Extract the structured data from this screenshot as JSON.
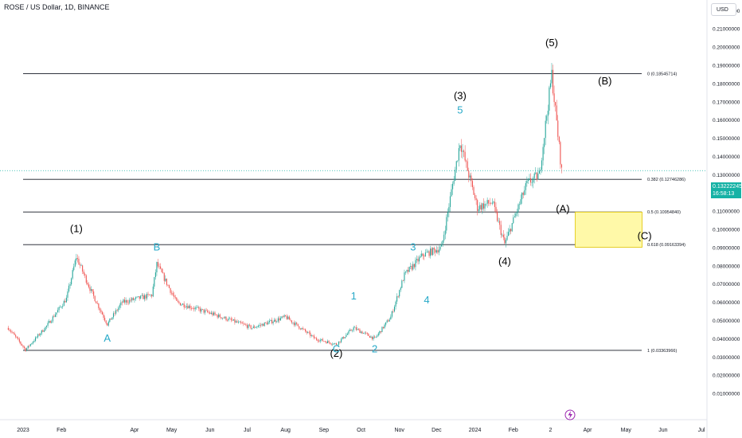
{
  "header": {
    "symbol_title": "ROSE / US Dollar, 1D, BINANCE",
    "currency": "USD"
  },
  "price_badge": {
    "price": "0.13222245",
    "countdown": "16:58:13"
  },
  "colors": {
    "up": "#26a69a",
    "down": "#ef5350",
    "fib_line": "#131722",
    "zone_fill": "#fff9a8",
    "zone_border": "#e0c400",
    "wave_minor": "#26a9c8",
    "wave_major": "#000000",
    "price_badge": "#16b2a5",
    "event_icon": "#9c27b0"
  },
  "chart_data": {
    "type": "candlestick",
    "x_axis_labels": [
      "2023",
      "Feb",
      "Apr",
      "May",
      "Jun",
      "Jul",
      "Aug",
      "Sep",
      "Oct",
      "Nov",
      "Dec",
      "2024",
      "Feb",
      "2",
      "Apr",
      "May",
      "Jun",
      "Jul"
    ],
    "y_axis_labels": [
      "0.01000000",
      "0.02000000",
      "0.03000000",
      "0.04000000",
      "0.05000000",
      "0.06000000",
      "0.07000000",
      "0.08000000",
      "0.09000000",
      "0.10000000",
      "0.11000000",
      "0.12000000",
      "0.13000000",
      "0.14000000",
      "0.15000000",
      "0.16000000",
      "0.17000000",
      "0.18000000",
      "0.19000000",
      "0.20000000",
      "0.21000000",
      "0.22000000"
    ],
    "ylim": [
      0.0,
      0.228
    ],
    "grid": false,
    "approx_path": [
      {
        "x": "2022-12-20",
        "y": 0.046
      },
      {
        "x": "2023-01-03",
        "y": 0.034
      },
      {
        "x": "2023-01-20",
        "y": 0.047
      },
      {
        "x": "2023-02-05",
        "y": 0.062
      },
      {
        "x": "2023-02-13",
        "y": 0.085
      },
      {
        "x": "2023-02-25",
        "y": 0.066
      },
      {
        "x": "2023-03-10",
        "y": 0.048
      },
      {
        "x": "2023-03-22",
        "y": 0.06
      },
      {
        "x": "2023-04-15",
        "y": 0.064
      },
      {
        "x": "2023-04-19",
        "y": 0.081
      },
      {
        "x": "2023-05-05",
        "y": 0.06
      },
      {
        "x": "2023-06-10",
        "y": 0.052
      },
      {
        "x": "2023-07-05",
        "y": 0.046
      },
      {
        "x": "2023-08-01",
        "y": 0.052
      },
      {
        "x": "2023-08-25",
        "y": 0.04
      },
      {
        "x": "2023-09-11",
        "y": 0.037
      },
      {
        "x": "2023-09-25",
        "y": 0.046
      },
      {
        "x": "2023-10-12",
        "y": 0.04
      },
      {
        "x": "2023-10-25",
        "y": 0.052
      },
      {
        "x": "2023-11-05",
        "y": 0.075
      },
      {
        "x": "2023-11-20",
        "y": 0.086
      },
      {
        "x": "2023-12-05",
        "y": 0.09
      },
      {
        "x": "2023-12-20",
        "y": 0.148
      },
      {
        "x": "2024-01-03",
        "y": 0.112
      },
      {
        "x": "2024-01-15",
        "y": 0.115
      },
      {
        "x": "2024-01-25",
        "y": 0.092
      },
      {
        "x": "2024-02-12",
        "y": 0.125
      },
      {
        "x": "2024-02-22",
        "y": 0.13
      },
      {
        "x": "2024-03-03",
        "y": 0.185
      },
      {
        "x": "2024-03-11",
        "y": 0.132
      }
    ],
    "fib_levels": [
      {
        "ratio": 0.0,
        "value": 0.18545714,
        "label": "0 (0.18545714)"
      },
      {
        "ratio": 0.382,
        "value": 0.12746286,
        "label": "0.382 (0.12746286)"
      },
      {
        "ratio": 0.5,
        "value": 0.1095484,
        "label": "0.5 (0.10954840)"
      },
      {
        "ratio": 0.618,
        "value": 0.09163394,
        "label": "0.618 (0.09163394)"
      },
      {
        "ratio": 1.0,
        "value": 0.03363966,
        "label": "1 (0.03363966)"
      }
    ],
    "target_zone": {
      "x_start": "2024-03-22",
      "x_end": "2024-05-15",
      "y_low": 0.0902,
      "y_high": 0.1095
    },
    "wave_labels": [
      {
        "text": "(1)",
        "style": "major",
        "x": "2023-02-13",
        "y": 0.0985
      },
      {
        "text": "(2)",
        "style": "major",
        "x": "2023-09-11",
        "y": 0.0302
      },
      {
        "text": "(3)",
        "style": "major",
        "x": "2023-12-20",
        "y": 0.1715
      },
      {
        "text": "(4)",
        "style": "major",
        "x": "2024-01-25",
        "y": 0.0805
      },
      {
        "text": "(5)",
        "style": "major",
        "x": "2024-03-03",
        "y": 0.2005
      },
      {
        "text": "(A)",
        "style": "major",
        "x": "2024-03-12",
        "y": 0.1095
      },
      {
        "text": "(B)",
        "style": "major",
        "x": "2024-04-15",
        "y": 0.1795
      },
      {
        "text": "(C)",
        "style": "major",
        "x": "2024-05-17",
        "y": 0.0945
      },
      {
        "text": "A",
        "style": "minor",
        "x": "2023-03-10",
        "y": 0.0385
      },
      {
        "text": "B",
        "style": "minor",
        "x": "2023-04-19",
        "y": 0.0885
      },
      {
        "text": "C",
        "style": "minor",
        "x": "2023-09-11",
        "y": 0.0325
      },
      {
        "text": "1",
        "style": "minor",
        "x": "2023-09-25",
        "y": 0.0615
      },
      {
        "text": "2",
        "style": "minor",
        "x": "2023-10-12",
        "y": 0.0325
      },
      {
        "text": "3",
        "style": "minor",
        "x": "2023-11-12",
        "y": 0.0885
      },
      {
        "text": "4",
        "style": "minor",
        "x": "2023-11-23",
        "y": 0.0595
      },
      {
        "text": "5",
        "style": "minor",
        "x": "2023-12-20",
        "y": 0.1635
      }
    ]
  }
}
